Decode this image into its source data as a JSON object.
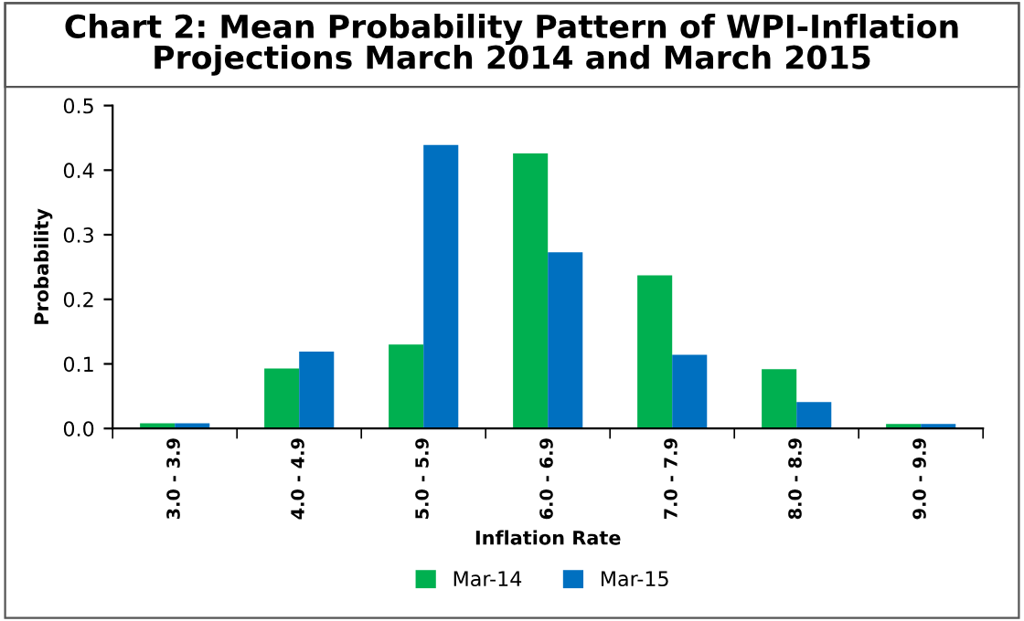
{
  "chart_data": {
    "type": "bar",
    "title": "Chart 2: Mean Probability Pattern of WPI-Inflation\nProjections March 2014 and March 2015",
    "xlabel": "Inflation Rate",
    "ylabel": "Probability",
    "categories": [
      "3.0 - 3.9",
      "4.0 - 4.9",
      "5.0 - 5.9",
      "6.0 - 6.9",
      "7.0 - 7.9",
      "8.0 - 8.9",
      "9.0 - 9.9"
    ],
    "series": [
      {
        "name": "Mar-14",
        "color": "#00b050",
        "values": [
          0.008,
          0.093,
          0.13,
          0.426,
          0.237,
          0.092,
          0.007
        ]
      },
      {
        "name": "Mar-15",
        "color": "#0070c0",
        "values": [
          0.008,
          0.119,
          0.439,
          0.273,
          0.114,
          0.041,
          0.007
        ]
      }
    ],
    "ylim": [
      0,
      0.5
    ],
    "yticks": [
      {
        "value": 0,
        "label": "0.0"
      },
      0.1,
      0.2,
      0.3,
      0.4,
      0.5
    ],
    "grid": false,
    "legend": "bottom"
  }
}
